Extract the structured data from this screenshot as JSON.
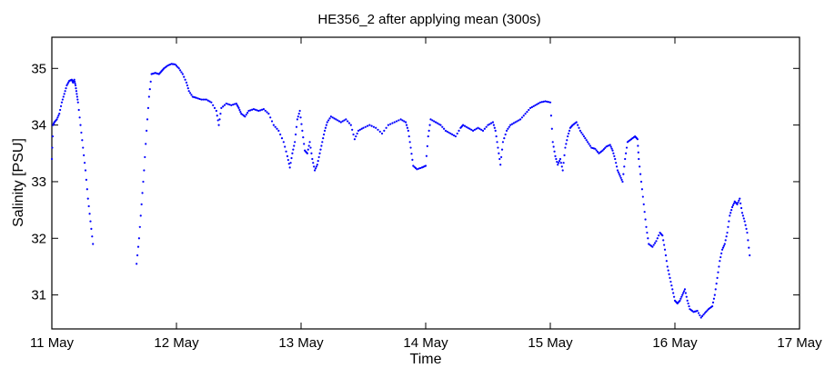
{
  "chart_data": {
    "type": "scatter",
    "title": "HE356_2 after applying mean (300s)",
    "xlabel": "Time",
    "ylabel": "Salinity [PSU]",
    "xlim": [
      11.0,
      17.0
    ],
    "ylim": [
      30.4,
      35.55
    ],
    "x_ticks": [
      {
        "value": 11,
        "label": "11 May"
      },
      {
        "value": 12,
        "label": "12 May"
      },
      {
        "value": 13,
        "label": "13 May"
      },
      {
        "value": 14,
        "label": "14 May"
      },
      {
        "value": 15,
        "label": "15 May"
      },
      {
        "value": 16,
        "label": "16 May"
      },
      {
        "value": 17,
        "label": "17 May"
      }
    ],
    "y_ticks": [
      {
        "value": 31,
        "label": "31"
      },
      {
        "value": 32,
        "label": "32"
      },
      {
        "value": 33,
        "label": "33"
      },
      {
        "value": 34,
        "label": "34"
      },
      {
        "value": 35,
        "label": "35"
      }
    ],
    "grid": false,
    "marker_color": "#0000ff",
    "x_unit": "day of May",
    "series_points": [
      [
        11.0,
        33.4
      ],
      [
        11.01,
        34.0
      ],
      [
        11.02,
        34.05
      ],
      [
        11.04,
        34.1
      ],
      [
        11.06,
        34.2
      ],
      [
        11.08,
        34.4
      ],
      [
        11.1,
        34.55
      ],
      [
        11.12,
        34.7
      ],
      [
        11.14,
        34.78
      ],
      [
        11.16,
        34.8
      ],
      [
        11.17,
        34.75
      ],
      [
        11.18,
        34.8
      ],
      [
        11.19,
        34.7
      ],
      [
        11.2,
        34.55
      ],
      [
        11.21,
        34.4
      ],
      [
        11.23,
        34.0
      ],
      [
        11.25,
        33.6
      ],
      [
        11.27,
        33.2
      ],
      [
        11.29,
        32.7
      ],
      [
        11.31,
        32.3
      ],
      [
        11.33,
        31.9
      ],
      [
        11.68,
        31.55
      ],
      [
        11.7,
        32.0
      ],
      [
        11.72,
        32.6
      ],
      [
        11.74,
        33.2
      ],
      [
        11.76,
        33.9
      ],
      [
        11.78,
        34.5
      ],
      [
        11.8,
        34.9
      ],
      [
        11.83,
        34.92
      ],
      [
        11.86,
        34.9
      ],
      [
        11.88,
        34.95
      ],
      [
        11.9,
        35.0
      ],
      [
        11.93,
        35.05
      ],
      [
        11.96,
        35.08
      ],
      [
        11.99,
        35.07
      ],
      [
        12.02,
        35.0
      ],
      [
        12.05,
        34.9
      ],
      [
        12.08,
        34.75
      ],
      [
        12.1,
        34.6
      ],
      [
        12.13,
        34.5
      ],
      [
        12.16,
        34.48
      ],
      [
        12.2,
        34.45
      ],
      [
        12.24,
        34.45
      ],
      [
        12.28,
        34.4
      ],
      [
        12.32,
        34.25
      ],
      [
        12.34,
        34.0
      ],
      [
        12.36,
        34.3
      ],
      [
        12.4,
        34.38
      ],
      [
        12.44,
        34.35
      ],
      [
        12.48,
        34.38
      ],
      [
        12.5,
        34.3
      ],
      [
        12.52,
        34.2
      ],
      [
        12.55,
        34.15
      ],
      [
        12.58,
        34.25
      ],
      [
        12.62,
        34.28
      ],
      [
        12.66,
        34.25
      ],
      [
        12.7,
        34.28
      ],
      [
        12.74,
        34.2
      ],
      [
        12.78,
        34.0
      ],
      [
        12.82,
        33.9
      ],
      [
        12.86,
        33.7
      ],
      [
        12.89,
        33.45
      ],
      [
        12.91,
        33.25
      ],
      [
        12.93,
        33.5
      ],
      [
        12.95,
        33.7
      ],
      [
        12.97,
        34.1
      ],
      [
        12.99,
        34.25
      ],
      [
        13.01,
        33.9
      ],
      [
        13.03,
        33.55
      ],
      [
        13.05,
        33.5
      ],
      [
        13.07,
        33.7
      ],
      [
        13.09,
        33.4
      ],
      [
        13.11,
        33.2
      ],
      [
        13.13,
        33.3
      ],
      [
        13.15,
        33.5
      ],
      [
        13.17,
        33.7
      ],
      [
        13.19,
        33.9
      ],
      [
        13.21,
        34.05
      ],
      [
        13.24,
        34.15
      ],
      [
        13.28,
        34.1
      ],
      [
        13.32,
        34.05
      ],
      [
        13.36,
        34.1
      ],
      [
        13.4,
        34.0
      ],
      [
        13.43,
        33.75
      ],
      [
        13.46,
        33.9
      ],
      [
        13.5,
        33.95
      ],
      [
        13.55,
        34.0
      ],
      [
        13.6,
        33.95
      ],
      [
        13.65,
        33.85
      ],
      [
        13.7,
        34.0
      ],
      [
        13.75,
        34.05
      ],
      [
        13.8,
        34.1
      ],
      [
        13.84,
        34.05
      ],
      [
        13.86,
        33.9
      ],
      [
        13.88,
        33.6
      ],
      [
        13.9,
        33.28
      ],
      [
        13.93,
        33.22
      ],
      [
        13.97,
        33.25
      ],
      [
        14.0,
        33.28
      ],
      [
        14.02,
        33.8
      ],
      [
        14.04,
        34.1
      ],
      [
        14.08,
        34.05
      ],
      [
        14.12,
        34.0
      ],
      [
        14.16,
        33.9
      ],
      [
        14.2,
        33.85
      ],
      [
        14.24,
        33.8
      ],
      [
        14.28,
        33.95
      ],
      [
        14.3,
        34.0
      ],
      [
        14.34,
        33.95
      ],
      [
        14.38,
        33.9
      ],
      [
        14.42,
        33.95
      ],
      [
        14.46,
        33.9
      ],
      [
        14.5,
        34.0
      ],
      [
        14.54,
        34.05
      ],
      [
        14.56,
        33.9
      ],
      [
        14.58,
        33.6
      ],
      [
        14.6,
        33.3
      ],
      [
        14.62,
        33.7
      ],
      [
        14.65,
        33.9
      ],
      [
        14.68,
        34.0
      ],
      [
        14.72,
        34.05
      ],
      [
        14.76,
        34.1
      ],
      [
        14.8,
        34.2
      ],
      [
        14.84,
        34.3
      ],
      [
        14.88,
        34.35
      ],
      [
        14.92,
        34.4
      ],
      [
        14.96,
        34.42
      ],
      [
        15.0,
        34.4
      ],
      [
        15.02,
        33.7
      ],
      [
        15.04,
        33.45
      ],
      [
        15.06,
        33.3
      ],
      [
        15.08,
        33.4
      ],
      [
        15.1,
        33.2
      ],
      [
        15.12,
        33.6
      ],
      [
        15.14,
        33.8
      ],
      [
        15.16,
        33.95
      ],
      [
        15.18,
        34.0
      ],
      [
        15.21,
        34.05
      ],
      [
        15.24,
        33.9
      ],
      [
        15.27,
        33.8
      ],
      [
        15.3,
        33.7
      ],
      [
        15.33,
        33.6
      ],
      [
        15.36,
        33.58
      ],
      [
        15.39,
        33.5
      ],
      [
        15.42,
        33.55
      ],
      [
        15.45,
        33.62
      ],
      [
        15.48,
        33.65
      ],
      [
        15.5,
        33.55
      ],
      [
        15.52,
        33.4
      ],
      [
        15.54,
        33.2
      ],
      [
        15.56,
        33.1
      ],
      [
        15.58,
        33.0
      ],
      [
        15.6,
        33.4
      ],
      [
        15.62,
        33.7
      ],
      [
        15.65,
        33.75
      ],
      [
        15.68,
        33.8
      ],
      [
        15.7,
        33.75
      ],
      [
        15.71,
        33.4
      ],
      [
        15.73,
        33.0
      ],
      [
        15.75,
        32.6
      ],
      [
        15.77,
        32.2
      ],
      [
        15.79,
        31.9
      ],
      [
        15.82,
        31.85
      ],
      [
        15.85,
        31.95
      ],
      [
        15.88,
        32.1
      ],
      [
        15.9,
        32.05
      ],
      [
        15.92,
        31.8
      ],
      [
        15.94,
        31.5
      ],
      [
        15.96,
        31.3
      ],
      [
        15.98,
        31.1
      ],
      [
        16.0,
        30.9
      ],
      [
        16.02,
        30.85
      ],
      [
        16.04,
        30.9
      ],
      [
        16.06,
        31.0
      ],
      [
        16.08,
        31.1
      ],
      [
        16.1,
        30.9
      ],
      [
        16.12,
        30.75
      ],
      [
        16.15,
        30.7
      ],
      [
        16.18,
        30.72
      ],
      [
        16.21,
        30.6
      ],
      [
        16.24,
        30.68
      ],
      [
        16.27,
        30.75
      ],
      [
        16.3,
        30.8
      ],
      [
        16.32,
        31.0
      ],
      [
        16.34,
        31.3
      ],
      [
        16.36,
        31.6
      ],
      [
        16.38,
        31.8
      ],
      [
        16.4,
        31.9
      ],
      [
        16.42,
        32.1
      ],
      [
        16.44,
        32.4
      ],
      [
        16.46,
        32.55
      ],
      [
        16.48,
        32.65
      ],
      [
        16.5,
        32.6
      ],
      [
        16.52,
        32.7
      ],
      [
        16.54,
        32.45
      ],
      [
        16.56,
        32.3
      ],
      [
        16.58,
        32.1
      ],
      [
        16.6,
        31.7
      ]
    ]
  }
}
